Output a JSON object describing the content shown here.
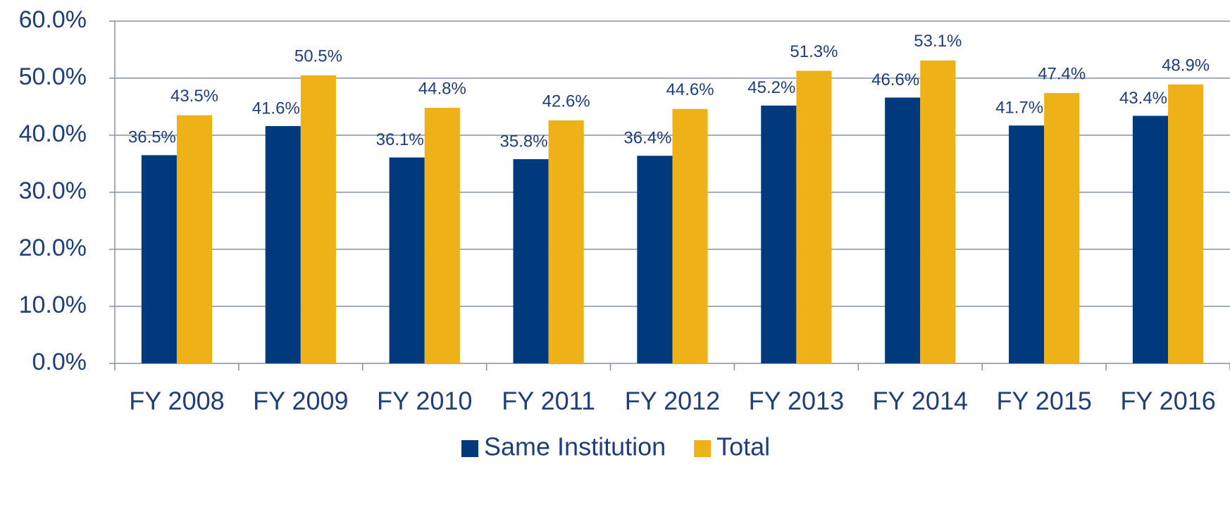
{
  "chart_data": {
    "type": "bar",
    "categories": [
      "FY 2008",
      "FY 2009",
      "FY 2010",
      "FY 2011",
      "FY 2012",
      "FY 2013",
      "FY 2014",
      "FY 2015",
      "FY 2016"
    ],
    "series": [
      {
        "name": "Same Institution",
        "color": "#003a7d",
        "values": [
          36.5,
          41.6,
          36.1,
          35.8,
          36.4,
          45.2,
          46.6,
          41.7,
          43.4
        ],
        "value_labels": [
          "36.5%",
          "41.6%",
          "36.1%",
          "35.8%",
          "36.4%",
          "45.2%",
          "46.6%",
          "41.7%",
          "43.4%"
        ]
      },
      {
        "name": "Total",
        "color": "#efb118",
        "values": [
          43.5,
          50.5,
          44.8,
          42.6,
          44.6,
          51.3,
          53.1,
          47.4,
          48.9
        ],
        "value_labels": [
          "43.5%",
          "50.5%",
          "44.8%",
          "42.6%",
          "44.6%",
          "51.3%",
          "53.1%",
          "47.4%",
          "48.9%"
        ]
      }
    ],
    "ylim": [
      0,
      60
    ],
    "yticks": [
      {
        "value": 0,
        "label": "0.0%"
      },
      {
        "value": 10,
        "label": "10.0%"
      },
      {
        "value": 20,
        "label": "20.0%"
      },
      {
        "value": 30,
        "label": "30.0%"
      },
      {
        "value": 40,
        "label": "40.0%"
      },
      {
        "value": 50,
        "label": "50.0%"
      },
      {
        "value": 60,
        "label": "60.0%"
      }
    ],
    "grid": true,
    "legend": "bottom"
  }
}
